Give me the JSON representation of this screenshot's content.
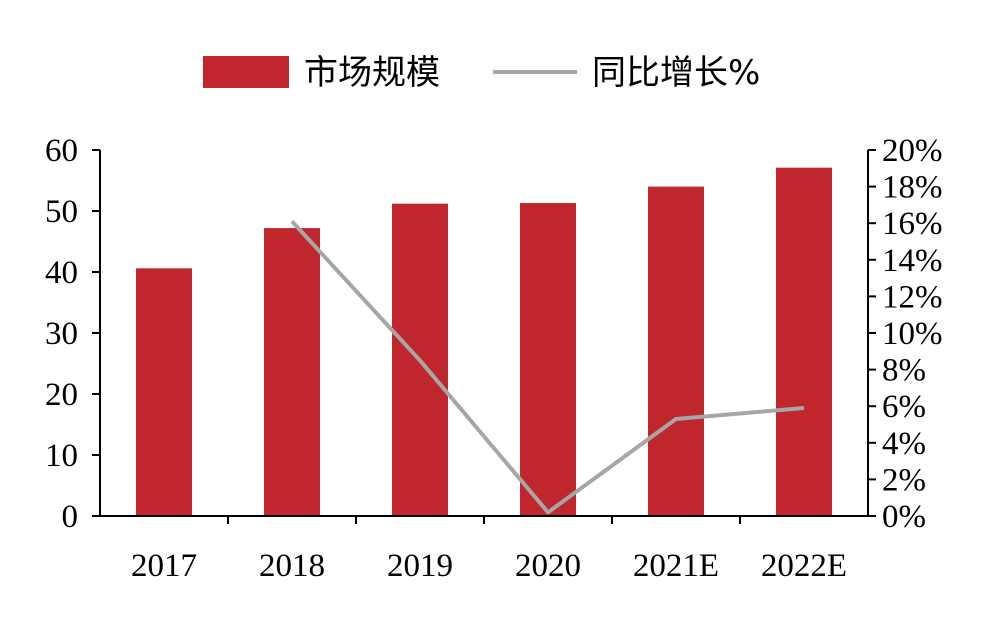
{
  "chart_data": {
    "type": "bar",
    "categories": [
      "2017",
      "2018",
      "2019",
      "2020",
      "2021E",
      "2022E"
    ],
    "series": [
      {
        "name": "市场规模",
        "type": "bar",
        "axis": "left",
        "color": "#c0272d",
        "values": [
          40.6,
          47.2,
          51.2,
          51.3,
          54.0,
          57.1
        ]
      },
      {
        "name": "同比增长%",
        "type": "line",
        "axis": "right",
        "color": "#a6a6a6",
        "values": [
          null,
          16.1,
          8.5,
          0.2,
          5.3,
          5.9
        ]
      }
    ],
    "y_left": {
      "ylim": [
        0,
        60
      ],
      "ticks": [
        "0",
        "10",
        "20",
        "30",
        "40",
        "50",
        "60"
      ]
    },
    "y_right": {
      "ylim": [
        0,
        20
      ],
      "ticks": [
        "0%",
        "2%",
        "4%",
        "6%",
        "8%",
        "10%",
        "12%",
        "14%",
        "16%",
        "18%",
        "20%"
      ]
    },
    "legend_position": "top",
    "grid": false
  }
}
